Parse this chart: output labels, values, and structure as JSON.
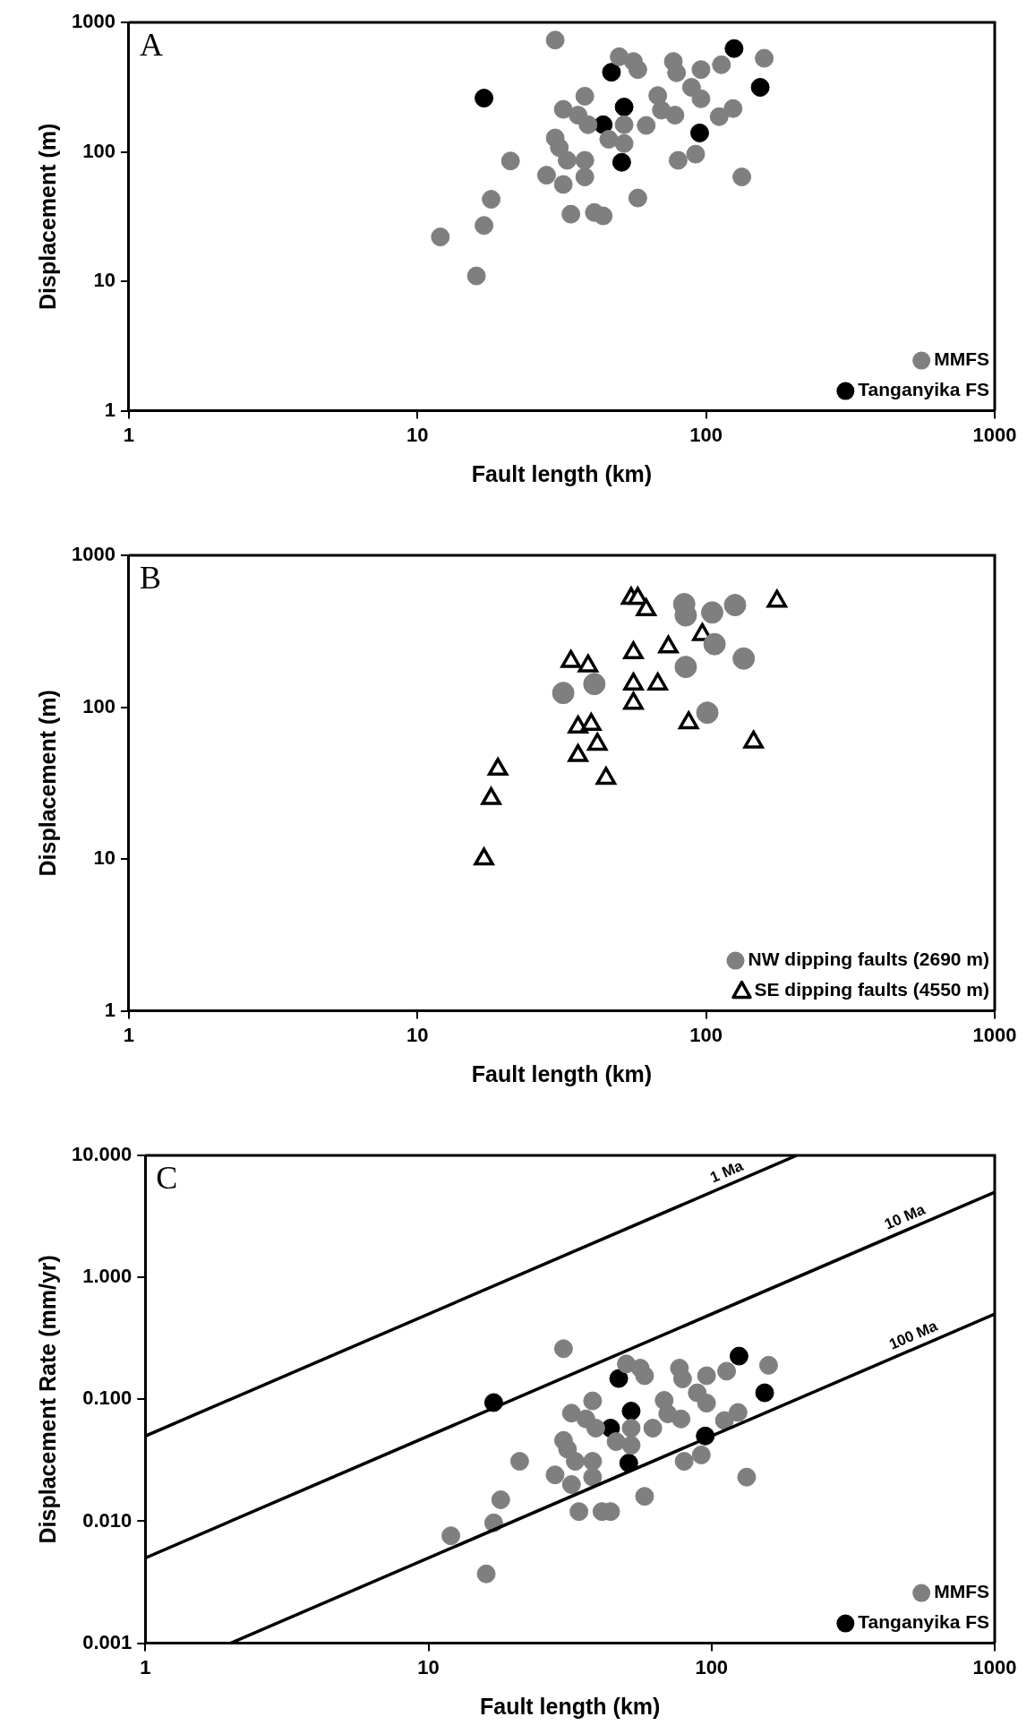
{
  "chart_data": [
    {
      "type": "scatter",
      "xlabel": "Fault length (km)",
      "ylabel": "Displacement (m)",
      "annotations": [
        "A"
      ],
      "log": "xy",
      "legend": "bottom right",
      "xlim": [
        1,
        1000
      ],
      "xticks": [
        1,
        10,
        100,
        1000
      ],
      "ylim": [
        1,
        1000
      ],
      "yticks": [
        1,
        10,
        100,
        1000
      ],
      "series": [
        {
          "name": "MMFS",
          "color": "#7f7f7f",
          "marker": "circle",
          "x": [
            30,
            12,
            16,
            17,
            18,
            21,
            32,
            38,
            36,
            39,
            30,
            31,
            28,
            33,
            38,
            38,
            32,
            34,
            41,
            44,
            58,
            46,
            52,
            52,
            62,
            68,
            70,
            78,
            50,
            56,
            58,
            77,
            79,
            96,
            89,
            96,
            113,
            159,
            111,
            124,
            80,
            92,
            133
          ],
          "values": [
            730,
            22,
            11,
            27,
            43,
            85,
            213,
            269,
            192,
            162,
            128,
            108,
            66,
            86,
            86,
            64,
            56,
            33,
            34,
            32,
            44,
            125,
            116,
            162,
            160,
            272,
            210,
            192,
            543,
            499,
            432,
            499,
            408,
            432,
            315,
            257,
            471,
            528,
            187,
            216,
            86,
            96,
            64
          ]
        },
        {
          "name": "Tanganyika FS",
          "color": "#000000",
          "marker": "circle",
          "x": [
            17,
            47,
            52,
            44,
            51,
            95,
            125,
            154
          ],
          "values": [
            260,
            412,
            222,
            162,
            83,
            140,
            628,
            315
          ]
        }
      ]
    },
    {
      "type": "scatter",
      "xlabel": "Fault length (km)",
      "ylabel": "Displacement (m)",
      "annotations": [
        "B"
      ],
      "log": "xy",
      "legend": "bottom right",
      "xlim": [
        1,
        1000
      ],
      "xticks": [
        1,
        10,
        100,
        1000
      ],
      "ylim": [
        1,
        1000
      ],
      "yticks": [
        1,
        10,
        100,
        1000
      ],
      "series": [
        {
          "name": "NW dipping faults (2690 m)",
          "color": "#7f7f7f",
          "marker": "circle",
          "x": [
            32,
            41,
            84,
            85,
            105,
            126,
            107,
            85,
            135,
            101
          ],
          "values": [
            124,
            142,
            477,
            402,
            420,
            470,
            260,
            184,
            209,
            92
          ]
        },
        {
          "name": "SE dipping faults (4550 m)",
          "color": "#000000",
          "marker": "triangle",
          "x": [
            55,
            58,
            62,
            176,
            97,
            74,
            34,
            39,
            56,
            56,
            68,
            56,
            87,
            146,
            36,
            40,
            36,
            42,
            19,
            45,
            17,
            18
          ],
          "values": [
            521,
            521,
            438,
            499,
            301,
            249,
            200,
            187,
            228,
            142,
            142,
            106,
            79,
            59,
            74,
            77,
            48,
            57,
            39,
            34,
            10,
            25
          ]
        }
      ]
    },
    {
      "type": "scatter",
      "xlabel": "Fault length (km)",
      "ylabel": "Displacement Rate (mm/yr)",
      "annotations": [
        "C"
      ],
      "log": "xy",
      "legend": "bottom right",
      "xlim": [
        1,
        1000
      ],
      "xticks": [
        1,
        10,
        100,
        1000
      ],
      "ylim": [
        0.001,
        10
      ],
      "yticks": [
        {
          "value": 0.001,
          "label": "0.001"
        },
        {
          "value": 0.01,
          "label": "0.010"
        },
        {
          "value": 0.1,
          "label": "0.100"
        },
        {
          "value": 1,
          "label": "1.000"
        },
        {
          "value": 10,
          "label": "10.000"
        }
      ],
      "series": [
        {
          "name": "1 Ma",
          "type": "line",
          "color": "#000000",
          "marker": "none",
          "x": [
            1,
            200
          ],
          "values": [
            0.05,
            10
          ]
        },
        {
          "name": "10 Ma",
          "type": "line",
          "color": "#000000",
          "marker": "none",
          "x": [
            1,
            1000
          ],
          "values": [
            0.005,
            5
          ]
        },
        {
          "name": "100 Ma",
          "type": "line",
          "color": "#000000",
          "marker": "none",
          "x": [
            2,
            1000
          ],
          "values": [
            0.001,
            0.5
          ]
        },
        {
          "name": "MMFS",
          "color": "#7f7f7f",
          "marker": "circle",
          "x": [
            30,
            12,
            16,
            17,
            18,
            21,
            32,
            38,
            36,
            39,
            30,
            31,
            28,
            33,
            38,
            38,
            32,
            34,
            41,
            44,
            58,
            46,
            52,
            52,
            62,
            68,
            70,
            78,
            50,
            56,
            58,
            77,
            79,
            96,
            89,
            96,
            113,
            159,
            111,
            124,
            80,
            92,
            133
          ],
          "values": [
            0.26,
            0.0076,
            0.0037,
            0.0097,
            0.015,
            0.031,
            0.077,
            0.097,
            0.069,
            0.058,
            0.046,
            0.039,
            0.024,
            0.031,
            0.031,
            0.023,
            0.02,
            0.012,
            0.012,
            0.012,
            0.016,
            0.045,
            0.042,
            0.058,
            0.058,
            0.098,
            0.076,
            0.069,
            0.195,
            0.18,
            0.156,
            0.18,
            0.147,
            0.156,
            0.113,
            0.093,
            0.17,
            0.19,
            0.067,
            0.078,
            0.031,
            0.035,
            0.023
          ]
        },
        {
          "name": "Tanganyika FS",
          "color": "#000000",
          "marker": "circle",
          "x": [
            17,
            47,
            52,
            44,
            51,
            95,
            125,
            154
          ],
          "values": [
            0.094,
            0.148,
            0.08,
            0.058,
            0.03,
            0.05,
            0.226,
            0.113
          ]
        }
      ]
    }
  ]
}
